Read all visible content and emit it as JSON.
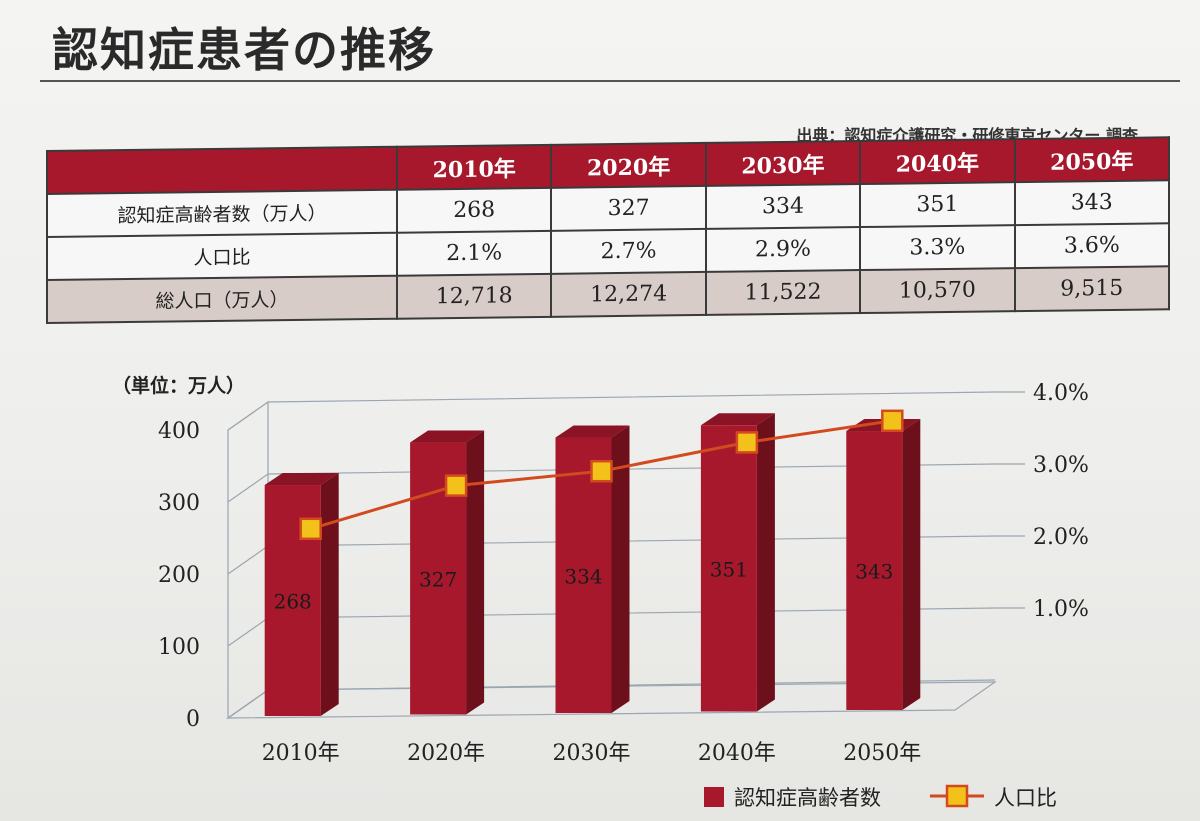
{
  "page": {
    "title": "認知症患者の推移",
    "source": "出典：認知症介護研究・研修東京センター 調査"
  },
  "table": {
    "headers": [
      "",
      "2010年",
      "2020年",
      "2030年",
      "2040年",
      "2050年"
    ],
    "rows": [
      {
        "label": "認知症高齢者数（万人）",
        "values": [
          "268",
          "327",
          "334",
          "351",
          "343"
        ]
      },
      {
        "label": "人口比",
        "values": [
          "2.1%",
          "2.7%",
          "2.9%",
          "3.3%",
          "3.6%"
        ]
      },
      {
        "label": "総人口（万人）",
        "values": [
          "12,718",
          "12,274",
          "11,522",
          "10,570",
          "9,515"
        ]
      }
    ]
  },
  "chart_data": {
    "type": "bar",
    "categories": [
      "2010年",
      "2020年",
      "2030年",
      "2040年",
      "2050年"
    ],
    "series": [
      {
        "name": "認知症高齢者数",
        "type": "bar",
        "axis": "left",
        "values": [
          268,
          327,
          334,
          351,
          343
        ],
        "color": "#a8182c"
      },
      {
        "name": "人口比",
        "type": "line",
        "axis": "right",
        "values": [
          2.1,
          2.7,
          2.9,
          3.3,
          3.6
        ],
        "color": "#d24a1e",
        "marker_color": "#f2c21a"
      }
    ],
    "ylabel": "（単位：万人）",
    "yticks": [
      "0",
      "100",
      "200",
      "300",
      "400"
    ],
    "ylim": [
      0,
      400
    ],
    "y2ticks": [
      "1.0%",
      "2.0%",
      "3.0%",
      "4.0%"
    ],
    "y2lim": [
      0,
      4.0
    ],
    "grid": true,
    "legend_position": "bottom-right",
    "style": "3d"
  }
}
